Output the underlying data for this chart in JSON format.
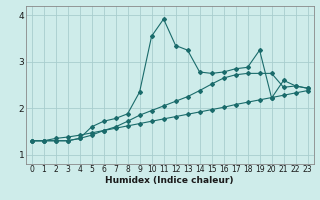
{
  "bg_color": "#ceecea",
  "grid_color": "#a8cece",
  "line_color": "#1a6b6b",
  "xlabel": "Humidex (Indice chaleur)",
  "xlim": [
    -0.5,
    23.5
  ],
  "ylim": [
    0.8,
    4.2
  ],
  "xticks": [
    0,
    1,
    2,
    3,
    4,
    5,
    6,
    7,
    8,
    9,
    10,
    11,
    12,
    13,
    14,
    15,
    16,
    17,
    18,
    19,
    20,
    21,
    22,
    23
  ],
  "yticks": [
    1,
    2,
    3,
    4
  ],
  "series": [
    {
      "x": [
        0,
        1,
        2,
        3,
        4,
        5,
        6,
        7,
        8,
        9,
        10,
        11,
        12,
        13,
        14,
        15,
        16,
        17,
        18,
        19,
        20,
        21,
        22,
        23
      ],
      "y": [
        1.3,
        1.3,
        1.35,
        1.38,
        1.42,
        1.47,
        1.52,
        1.57,
        1.62,
        1.67,
        1.72,
        1.77,
        1.82,
        1.87,
        1.92,
        1.97,
        2.02,
        2.08,
        2.13,
        2.18,
        2.23,
        2.28,
        2.33,
        2.38
      ]
    },
    {
      "x": [
        0,
        1,
        2,
        3,
        4,
        5,
        6,
        7,
        8,
        9,
        10,
        11,
        12,
        13,
        14,
        15,
        16,
        17,
        18,
        19,
        20,
        21,
        22,
        23
      ],
      "y": [
        1.3,
        1.3,
        1.3,
        1.3,
        1.35,
        1.42,
        1.52,
        1.6,
        1.72,
        1.85,
        1.95,
        2.05,
        2.15,
        2.25,
        2.38,
        2.52,
        2.65,
        2.72,
        2.75,
        2.75,
        2.75,
        2.45,
        2.48,
        2.43
      ]
    },
    {
      "x": [
        0,
        1,
        2,
        3,
        4,
        5,
        6,
        7,
        8,
        9,
        10,
        11,
        12,
        13,
        14,
        15,
        16,
        17,
        18,
        19,
        20,
        21,
        22,
        23
      ],
      "y": [
        1.3,
        1.3,
        1.3,
        1.3,
        1.35,
        1.6,
        1.72,
        1.78,
        1.88,
        2.35,
        3.55,
        3.92,
        3.35,
        3.25,
        2.78,
        2.75,
        2.78,
        2.85,
        2.88,
        3.25,
        2.22,
        2.6,
        2.48,
        2.43
      ]
    }
  ]
}
